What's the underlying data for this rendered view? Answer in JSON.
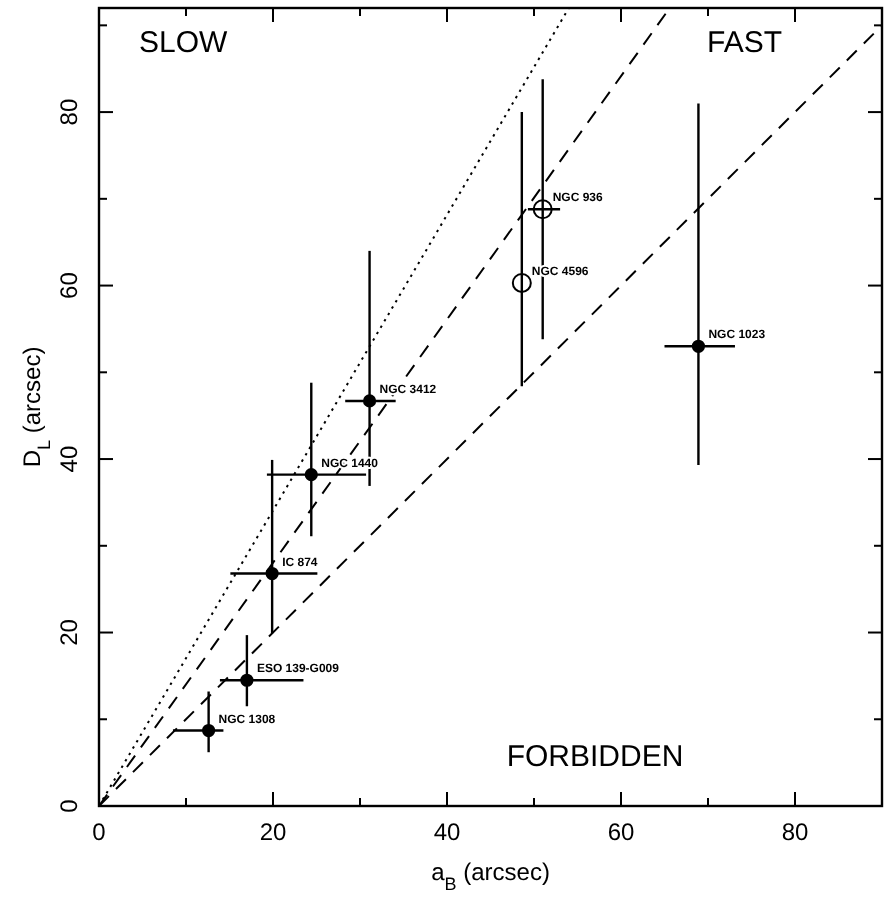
{
  "chart_data": {
    "type": "scatter",
    "xlabel": "a$_{B}$ (arcsec)",
    "ylabel": "D$_{L}$ (arcsec)",
    "xlim": [
      0,
      90
    ],
    "ylim": [
      0,
      92
    ],
    "xticks": [
      0,
      {
        "value": 10,
        "label": null
      },
      20,
      {
        "value": 30,
        "label": null
      },
      40,
      {
        "value": 50,
        "label": null
      },
      60,
      {
        "value": 70,
        "label": null
      },
      80,
      {
        "value": 90,
        "label": null
      }
    ],
    "yticks": [
      0,
      {
        "value": 10,
        "label": null
      },
      20,
      {
        "value": 30,
        "label": null
      },
      40,
      {
        "value": 50,
        "label": null
      },
      60,
      {
        "value": 70,
        "label": null
      },
      80,
      {
        "value": 90,
        "label": null
      }
    ],
    "grid": false,
    "series": [
      {
        "marker": "circle",
        "color": "#000000",
        "x": [
          12.6,
          17.0,
          19.9,
          24.4,
          31.1,
          68.9
        ],
        "values": [
          8.7,
          14.5,
          26.8,
          38.2,
          46.7,
          53.0
        ],
        "errors": [
          [
            6.2,
            13.2
          ],
          [
            11.5,
            19.7
          ],
          [
            19.9,
            39.9
          ],
          [
            31.1,
            48.8
          ],
          [
            36.9,
            64.0
          ],
          [
            39.3,
            81.0
          ]
        ],
        "xerrors": [
          [
            8.5,
            14.3
          ],
          [
            13.9,
            23.5
          ],
          [
            15.1,
            25.1
          ],
          [
            19.3,
            30.7
          ],
          [
            28.3,
            34.1
          ],
          [
            65.0,
            73.1
          ]
        ]
      },
      {
        "marker": "circle",
        "color": "#000000",
        "x": [
          48.6,
          51.0
        ],
        "values": [
          60.3,
          68.8
        ],
        "errors": [
          [
            48.4,
            80.0
          ],
          [
            53.8,
            83.8
          ]
        ],
        "xerrors": [
          null,
          [
            49.3,
            53.0
          ]
        ]
      },
      {
        "type": "line",
        "color": "#000000",
        "line_style": "dotted",
        "x": [
          0,
          54
        ],
        "values": [
          0,
          92
        ]
      },
      {
        "type": "line",
        "color": "#000000",
        "line_style": "dashed",
        "x": [
          0,
          65.6
        ],
        "values": [
          0,
          92
        ]
      },
      {
        "type": "line",
        "color": "#000000",
        "line_style": "dashed",
        "x": [
          0,
          90
        ],
        "values": [
          0,
          90
        ]
      }
    ],
    "annotations": [
      {
        "text": "NGC 1308",
        "x": 12.6,
        "y": 8.7
      },
      {
        "text": "ESO 139-G009",
        "x": 17.0,
        "y": 14.5
      },
      {
        "text": "IC 874",
        "x": 19.9,
        "y": 26.8
      },
      {
        "text": "NGC 1440",
        "x": 24.4,
        "y": 38.2
      },
      {
        "text": "NGC 3412",
        "x": 31.1,
        "y": 46.7
      },
      {
        "text": "NGC 1023",
        "x": 68.9,
        "y": 53.0
      },
      {
        "text": "NGC 4596",
        "x": 48.6,
        "y": 60.3
      },
      {
        "text": "NGC 936",
        "x": 51.0,
        "y": 68.8
      },
      "SLOW",
      "FAST",
      "FORBIDDEN"
    ]
  }
}
